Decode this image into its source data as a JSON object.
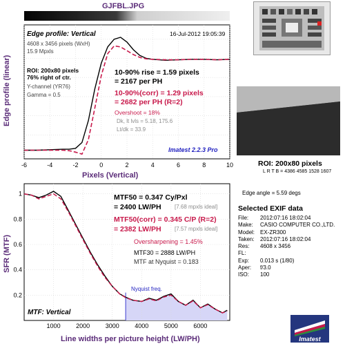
{
  "header": {
    "filename": "GJFBL.JPG"
  },
  "edge_panel": {
    "title": "Edge profile: Vertical",
    "timestamp": "16-Jul-2012 19:05:39",
    "dims": "4608 x 3456 pixels (WxH)",
    "mpxls": "15.9 Mpxls",
    "roi": "ROI: 200x80 pixels",
    "roi_pos": "76% right of ctr.",
    "channel": "Y-channel (YR76)",
    "gamma": "Gamma = 0.5",
    "rise_line1": "10-90% rise = 1.59 pixels",
    "rise_line2": "= 2167 per PH",
    "corr_line1": "10-90%(corr) = 1.29 pixels",
    "corr_line2": "= 2682 per PH (R=2)",
    "overshoot": "Overshoot = 18%",
    "dk_lt": "Dk, lt lvls = 5.18, 175.6",
    "ltdk": "Lt/dk = 33.9",
    "version": "Imatest 2.2.3 Pro",
    "ylabel": "Edge profile (linear)",
    "xlabel": "Pixels (Vertical)"
  },
  "mtf_panel": {
    "mtf50_line1": "MTF50 = 0.347 Cy/Pxl",
    "mtf50_line2": "= 2400 LW/PH",
    "mtf50_ideal": "[7.68 mpxls ideal]",
    "corr_line1": "MTF50(corr) = 0.345 C/P (R=2)",
    "corr_line2": "= 2382 LW/PH",
    "corr_ideal": "[7.57 mpxls ideal]",
    "oversharp": "Oversharpening = 1.45%",
    "mtf30": "MTF30 = 2888 LW/PH",
    "mtf_nyq": "MTF at Nyquist = 0.183",
    "nyquist": "Nyquist freq.",
    "panel_label": "MTF: Vertical",
    "ylabel": "SFR (MTF)",
    "xlabel": "Line widths per picture height (LW/PH)"
  },
  "right_panel": {
    "roi_title": "ROI: 200x80 pixels",
    "lrtb": "L R T B = 4386 4585  1528 1607",
    "edge_angle": "Edge angle = 5.59 degs",
    "exif_title": "Selected EXIF data",
    "exif": [
      {
        "k": "File:",
        "v": "2012:07:16 18:02:04"
      },
      {
        "k": "Make:",
        "v": "CASIO COMPUTER CO.,LTD."
      },
      {
        "k": "Model:",
        "v": "EX-ZR300"
      },
      {
        "k": "Taken:",
        "v": "2012:07:16 18:02:04"
      },
      {
        "k": "Res:",
        "v": "4608 x 3456"
      },
      {
        "k": "FL:",
        "v": ""
      },
      {
        "k": "Exp:",
        "v": "0.013 s  (1/80)"
      },
      {
        "k": "Aper:",
        "v": "f/3.0"
      },
      {
        "k": "ISO:",
        "v": "100"
      }
    ],
    "logo_text": "Imatest"
  },
  "colors": {
    "black_curve": "#000000",
    "red_curve": "#c8194b",
    "purple_text": "#5a2b78",
    "nyquist_fill": "#d6d6f7",
    "nyquist_line": "#3a3acf"
  },
  "chart_data": [
    {
      "type": "line",
      "title": "Edge profile: Vertical",
      "xlabel": "Pixels (Vertical)",
      "ylabel": "Edge profile (linear)",
      "xlim": [
        -6,
        10
      ],
      "xticks": [
        -6,
        -4,
        -2,
        0,
        2,
        4,
        6,
        8,
        10
      ],
      "grid": true,
      "series": [
        {
          "color": "#000000",
          "style": "solid",
          "x": [
            -6,
            -5,
            -4,
            -3,
            -2.5,
            -2,
            -1.5,
            -1,
            -0.5,
            0,
            0.5,
            1,
            1.5,
            2,
            2.5,
            3,
            3.5,
            4,
            5,
            6,
            7,
            8,
            9,
            10
          ],
          "y": [
            0.04,
            0.04,
            0.045,
            0.05,
            0.05,
            0.06,
            0.12,
            0.35,
            0.68,
            0.95,
            1.12,
            1.2,
            1.22,
            1.17,
            1.09,
            1.03,
            1.0,
            0.99,
            0.98,
            0.985,
            0.99,
            0.99,
            0.985,
            0.99
          ]
        },
        {
          "color": "#c8194b",
          "style": "dashed",
          "x": [
            -6,
            -5,
            -4,
            -3,
            -2.5,
            -2,
            -1.5,
            -1,
            -0.5,
            0,
            0.5,
            1,
            1.5,
            2,
            2.5,
            3,
            3.5,
            4,
            5,
            6,
            7,
            8,
            9,
            10
          ],
          "y": [
            0.04,
            0.04,
            0.04,
            0.04,
            0.035,
            0.02,
            0.0,
            0.15,
            0.48,
            0.82,
            1.05,
            1.13,
            1.12,
            1.08,
            1.04,
            1.01,
            0.995,
            0.99,
            0.985,
            0.985,
            0.99,
            0.99,
            0.985,
            0.99
          ]
        }
      ]
    },
    {
      "type": "line",
      "title": "MTF: Vertical",
      "xlabel": "Line widths per picture height (LW/PH)",
      "ylabel": "SFR (MTF)",
      "xlim": [
        0,
        7000
      ],
      "ylim": [
        0,
        1.08
      ],
      "xticks": [
        1000,
        2000,
        3000,
        4000,
        5000,
        6000
      ],
      "yticks": [
        0.2,
        0.4,
        0.6,
        0.8,
        1
      ],
      "nyquist": 3456,
      "grid": true,
      "series": [
        {
          "color": "#000000",
          "style": "solid",
          "x": [
            0,
            250,
            500,
            750,
            1000,
            1250,
            1500,
            1750,
            2000,
            2250,
            2500,
            2750,
            3000,
            3250,
            3456,
            3700,
            4000,
            4250,
            4500,
            4750,
            5000,
            5250,
            5500,
            5750,
            6000,
            6250,
            6500,
            6750,
            6912
          ],
          "y": [
            1.0,
            0.99,
            0.97,
            0.99,
            1.02,
            0.98,
            0.87,
            0.76,
            0.65,
            0.54,
            0.44,
            0.35,
            0.27,
            0.21,
            0.183,
            0.16,
            0.15,
            0.175,
            0.16,
            0.19,
            0.21,
            0.15,
            0.12,
            0.16,
            0.1,
            0.13,
            0.09,
            0.06,
            0.08
          ]
        },
        {
          "color": "#c8194b",
          "style": "dashed",
          "x": [
            0,
            250,
            500,
            750,
            1000,
            1250,
            1500,
            1750,
            2000,
            2250,
            2500,
            2750,
            3000,
            3250,
            3456,
            3700,
            4000,
            4250,
            4500,
            4750,
            5000,
            5250,
            5500,
            5750,
            6000,
            6250,
            6500,
            6750,
            6912
          ],
          "y": [
            1.0,
            0.99,
            0.96,
            0.98,
            1.0,
            0.96,
            0.86,
            0.75,
            0.64,
            0.53,
            0.43,
            0.34,
            0.27,
            0.21,
            0.18,
            0.16,
            0.15,
            0.17,
            0.155,
            0.185,
            0.2,
            0.15,
            0.12,
            0.155,
            0.1,
            0.125,
            0.09,
            0.06,
            0.075
          ]
        }
      ]
    }
  ]
}
